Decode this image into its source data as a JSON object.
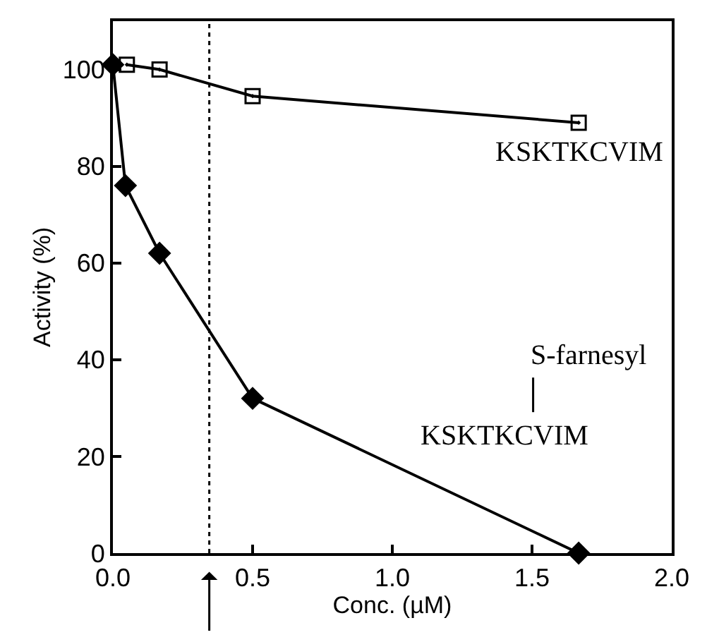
{
  "chart_data": {
    "type": "line",
    "xlabel": "Conc. (µM)",
    "ylabel": "Activity (%)",
    "xlim": [
      0,
      2.0
    ],
    "xticks": [
      {
        "value": 0,
        "label": "0.0"
      },
      0.5,
      {
        "value": 1,
        "label": "1.0"
      },
      1.5,
      {
        "value": 2,
        "label": "2.0"
      }
    ],
    "ylim": [
      0,
      110
    ],
    "yticks": [
      0,
      20,
      40,
      60,
      80,
      100
    ],
    "series": [
      {
        "color": "#000000",
        "marker": "square",
        "x": [
          0.05,
          0.167,
          0.5,
          1.667
        ],
        "values": [
          101,
          100,
          94.5,
          89
        ]
      },
      {
        "color": "#000000",
        "marker": "diamond",
        "x": [
          0,
          0.045,
          0.167,
          0.5,
          1.667
        ],
        "values": [
          101,
          76,
          62,
          32,
          0
        ]
      }
    ],
    "ref_lines": [
      {
        "axis": "x",
        "value": 0.345,
        "line_style": "dotted",
        "color": "#000000"
      }
    ],
    "annotations": [
      {
        "text": "KSKTKCVIM",
        "x": 1.667,
        "y": 89
      },
      "S-farnesyl",
      "KSKTKCVIM"
    ]
  }
}
